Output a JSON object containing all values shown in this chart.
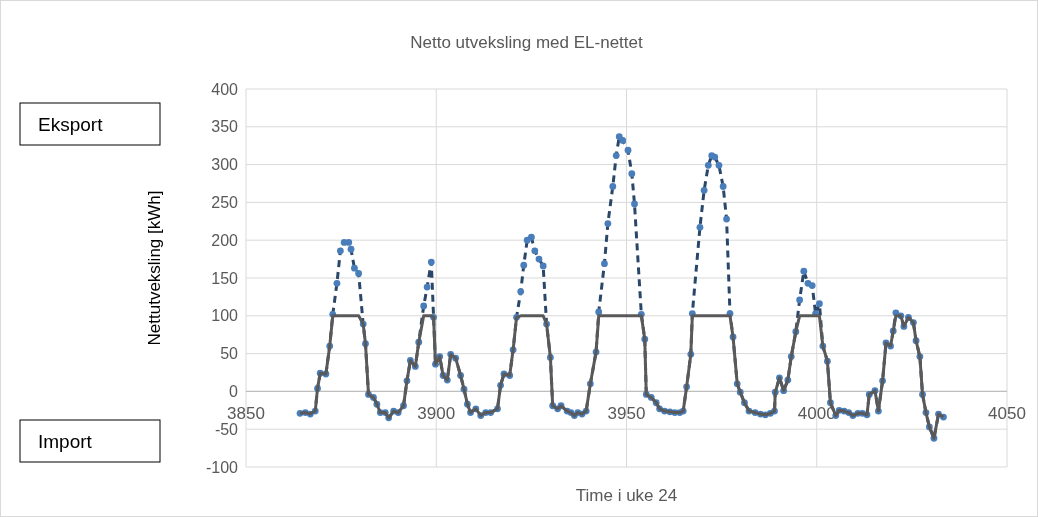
{
  "chart_data": {
    "type": "line",
    "title": "Netto utveksling med EL-nettet",
    "xlabel": "Time i uke 24",
    "ylabel": "Nettutveksling [kWh]",
    "annotations": [
      "Eksport",
      "Import"
    ],
    "xlim": [
      3850,
      4050
    ],
    "xticks": [
      3850,
      3900,
      3950,
      4000,
      4050
    ],
    "ylim": [
      -100,
      400
    ],
    "yticks": [
      -100,
      -50,
      0,
      50,
      100,
      150,
      200,
      250,
      300,
      350,
      400
    ],
    "grid": true,
    "x": [
      3864.2,
      3865.6,
      3866.9,
      3868.2,
      3868.8,
      3869.5,
      3871,
      3872,
      3872.8,
      3873.9,
      3874.8,
      3875.8,
      3877,
      3877.6,
      3878.5,
      3879.6,
      3880.8,
      3881.4,
      3882.2,
      3883.5,
      3884.4,
      3885.3,
      3886.6,
      3887.5,
      3888.8,
      3890,
      3891.4,
      3892.3,
      3893.2,
      3894.5,
      3895.4,
      3896.7,
      3897.6,
      3898.7,
      3899.3,
      3899.8,
      3900.9,
      3901.8,
      3902.9,
      3903.8,
      3905.1,
      3906.4,
      3907.3,
      3908.2,
      3909,
      3910.4,
      3911.7,
      3913,
      3914.3,
      3916.1,
      3916.9,
      3917.8,
      3919.3,
      3920.2,
      3921.1,
      3922.2,
      3923,
      3923.9,
      3925,
      3925.9,
      3927,
      3928.1,
      3929,
      3930,
      3930.6,
      3931.9,
      3932.8,
      3934.4,
      3935.4,
      3936.3,
      3937.2,
      3938.3,
      3939.4,
      3940.5,
      3942,
      3942.7,
      3944.2,
      3945.1,
      3946.4,
      3947.3,
      3948.1,
      3949,
      3950.4,
      3951.4,
      3952.1,
      3953.9,
      3954.8,
      3955.2,
      3956.5,
      3957.8,
      3958.7,
      3960,
      3961.4,
      3962.7,
      3964,
      3964.9,
      3965.8,
      3966.9,
      3967.3,
      3969.3,
      3970.4,
      3971.5,
      3972.4,
      3973.2,
      3974.3,
      3975.4,
      3976.3,
      3977.2,
      3978,
      3979.1,
      3979.9,
      3981,
      3982.2,
      3983.8,
      3985.2,
      3986.5,
      3987.8,
      3988.9,
      3989.1,
      3990.2,
      3991.3,
      3992.4,
      3993.3,
      3994.5,
      3995.5,
      3996.6,
      3997.7,
      3998.8,
      3999.7,
      4000.7,
      4001.6,
      4002.8,
      4003.6,
      4005,
      4005.9,
      4007.2,
      4008.4,
      4009.5,
      4010.8,
      4012,
      4013.2,
      4013.8,
      4015.3,
      4016.2,
      4017.3,
      4018.2,
      4019.4,
      4020.1,
      4020.8,
      4022.1,
      4022.9,
      4024.1,
      4025.4,
      4026.1,
      4027.1,
      4027.8,
      4028.7,
      4029.6,
      4030.8,
      4032,
      4033.3
    ],
    "series": [
      {
        "color": "#4a7ebb",
        "marker": "circle",
        "line_style": "dashed",
        "values": [
          -29,
          -28,
          -30,
          -26,
          4,
          24,
          23,
          60,
          102,
          143,
          186,
          197,
          197,
          188,
          163,
          156,
          89,
          63,
          -4,
          -8,
          -17,
          -28,
          -28,
          -35,
          -26,
          -28,
          -19,
          14,
          41,
          33,
          65,
          113,
          138,
          171,
          98,
          36,
          46,
          21,
          15,
          49,
          44,
          21,
          3,
          -17,
          -28,
          -23,
          -32,
          -28,
          -28,
          -23,
          8,
          23,
          21,
          55,
          98,
          132,
          167,
          200,
          204,
          186,
          175,
          166,
          89,
          45,
          -19,
          -23,
          -19,
          -26,
          -28,
          -32,
          -28,
          -30,
          -26,
          10,
          52,
          105,
          169,
          222,
          271,
          312,
          337,
          332,
          319,
          288,
          248,
          102,
          69,
          -4,
          -8,
          -15,
          -23,
          -26,
          -27,
          -28,
          -28,
          -26,
          6,
          49,
          103,
          217,
          266,
          299,
          312,
          310,
          299,
          271,
          228,
          103,
          72,
          10,
          -1,
          -15,
          -26,
          -28,
          -30,
          -31,
          -29,
          -26,
          -1,
          18,
          1,
          15,
          46,
          79,
          121,
          159,
          143,
          140,
          103,
          116,
          60,
          40,
          -15,
          -32,
          -25,
          -26,
          -28,
          -32,
          -29,
          -29,
          -31,
          -4,
          1,
          -26,
          14,
          64,
          60,
          80,
          104,
          100,
          86,
          98,
          91,
          67,
          46,
          -4,
          -28,
          -47,
          -62,
          -30,
          -34
        ]
      },
      {
        "color": "#595959",
        "marker": "none",
        "line_style": "solid",
        "values": [
          -29,
          -28,
          -30,
          -26,
          4,
          24,
          23,
          60,
          100,
          100,
          100,
          100,
          100,
          100,
          100,
          100,
          89,
          63,
          -4,
          -8,
          -17,
          -28,
          -28,
          -35,
          -26,
          -28,
          -19,
          14,
          41,
          33,
          65,
          100,
          100,
          100,
          98,
          36,
          46,
          21,
          15,
          49,
          44,
          21,
          3,
          -17,
          -28,
          -23,
          -32,
          -28,
          -28,
          -23,
          8,
          23,
          21,
          55,
          98,
          100,
          100,
          100,
          100,
          100,
          100,
          100,
          89,
          45,
          -19,
          -23,
          -19,
          -26,
          -28,
          -32,
          -28,
          -30,
          -26,
          10,
          52,
          100,
          100,
          100,
          100,
          100,
          100,
          100,
          100,
          100,
          100,
          100,
          69,
          -4,
          -8,
          -15,
          -23,
          -26,
          -27,
          -28,
          -28,
          -26,
          6,
          49,
          100,
          100,
          100,
          100,
          100,
          100,
          100,
          100,
          100,
          100,
          72,
          10,
          -1,
          -15,
          -26,
          -28,
          -30,
          -31,
          -29,
          -26,
          -1,
          18,
          1,
          15,
          46,
          79,
          100,
          100,
          100,
          100,
          100,
          100,
          60,
          40,
          -15,
          -32,
          -25,
          -26,
          -28,
          -32,
          -29,
          -29,
          -31,
          -4,
          1,
          -26,
          14,
          64,
          60,
          80,
          100,
          100,
          86,
          98,
          91,
          67,
          46,
          -4,
          -28,
          -47,
          -62,
          -30,
          -34
        ]
      }
    ]
  }
}
